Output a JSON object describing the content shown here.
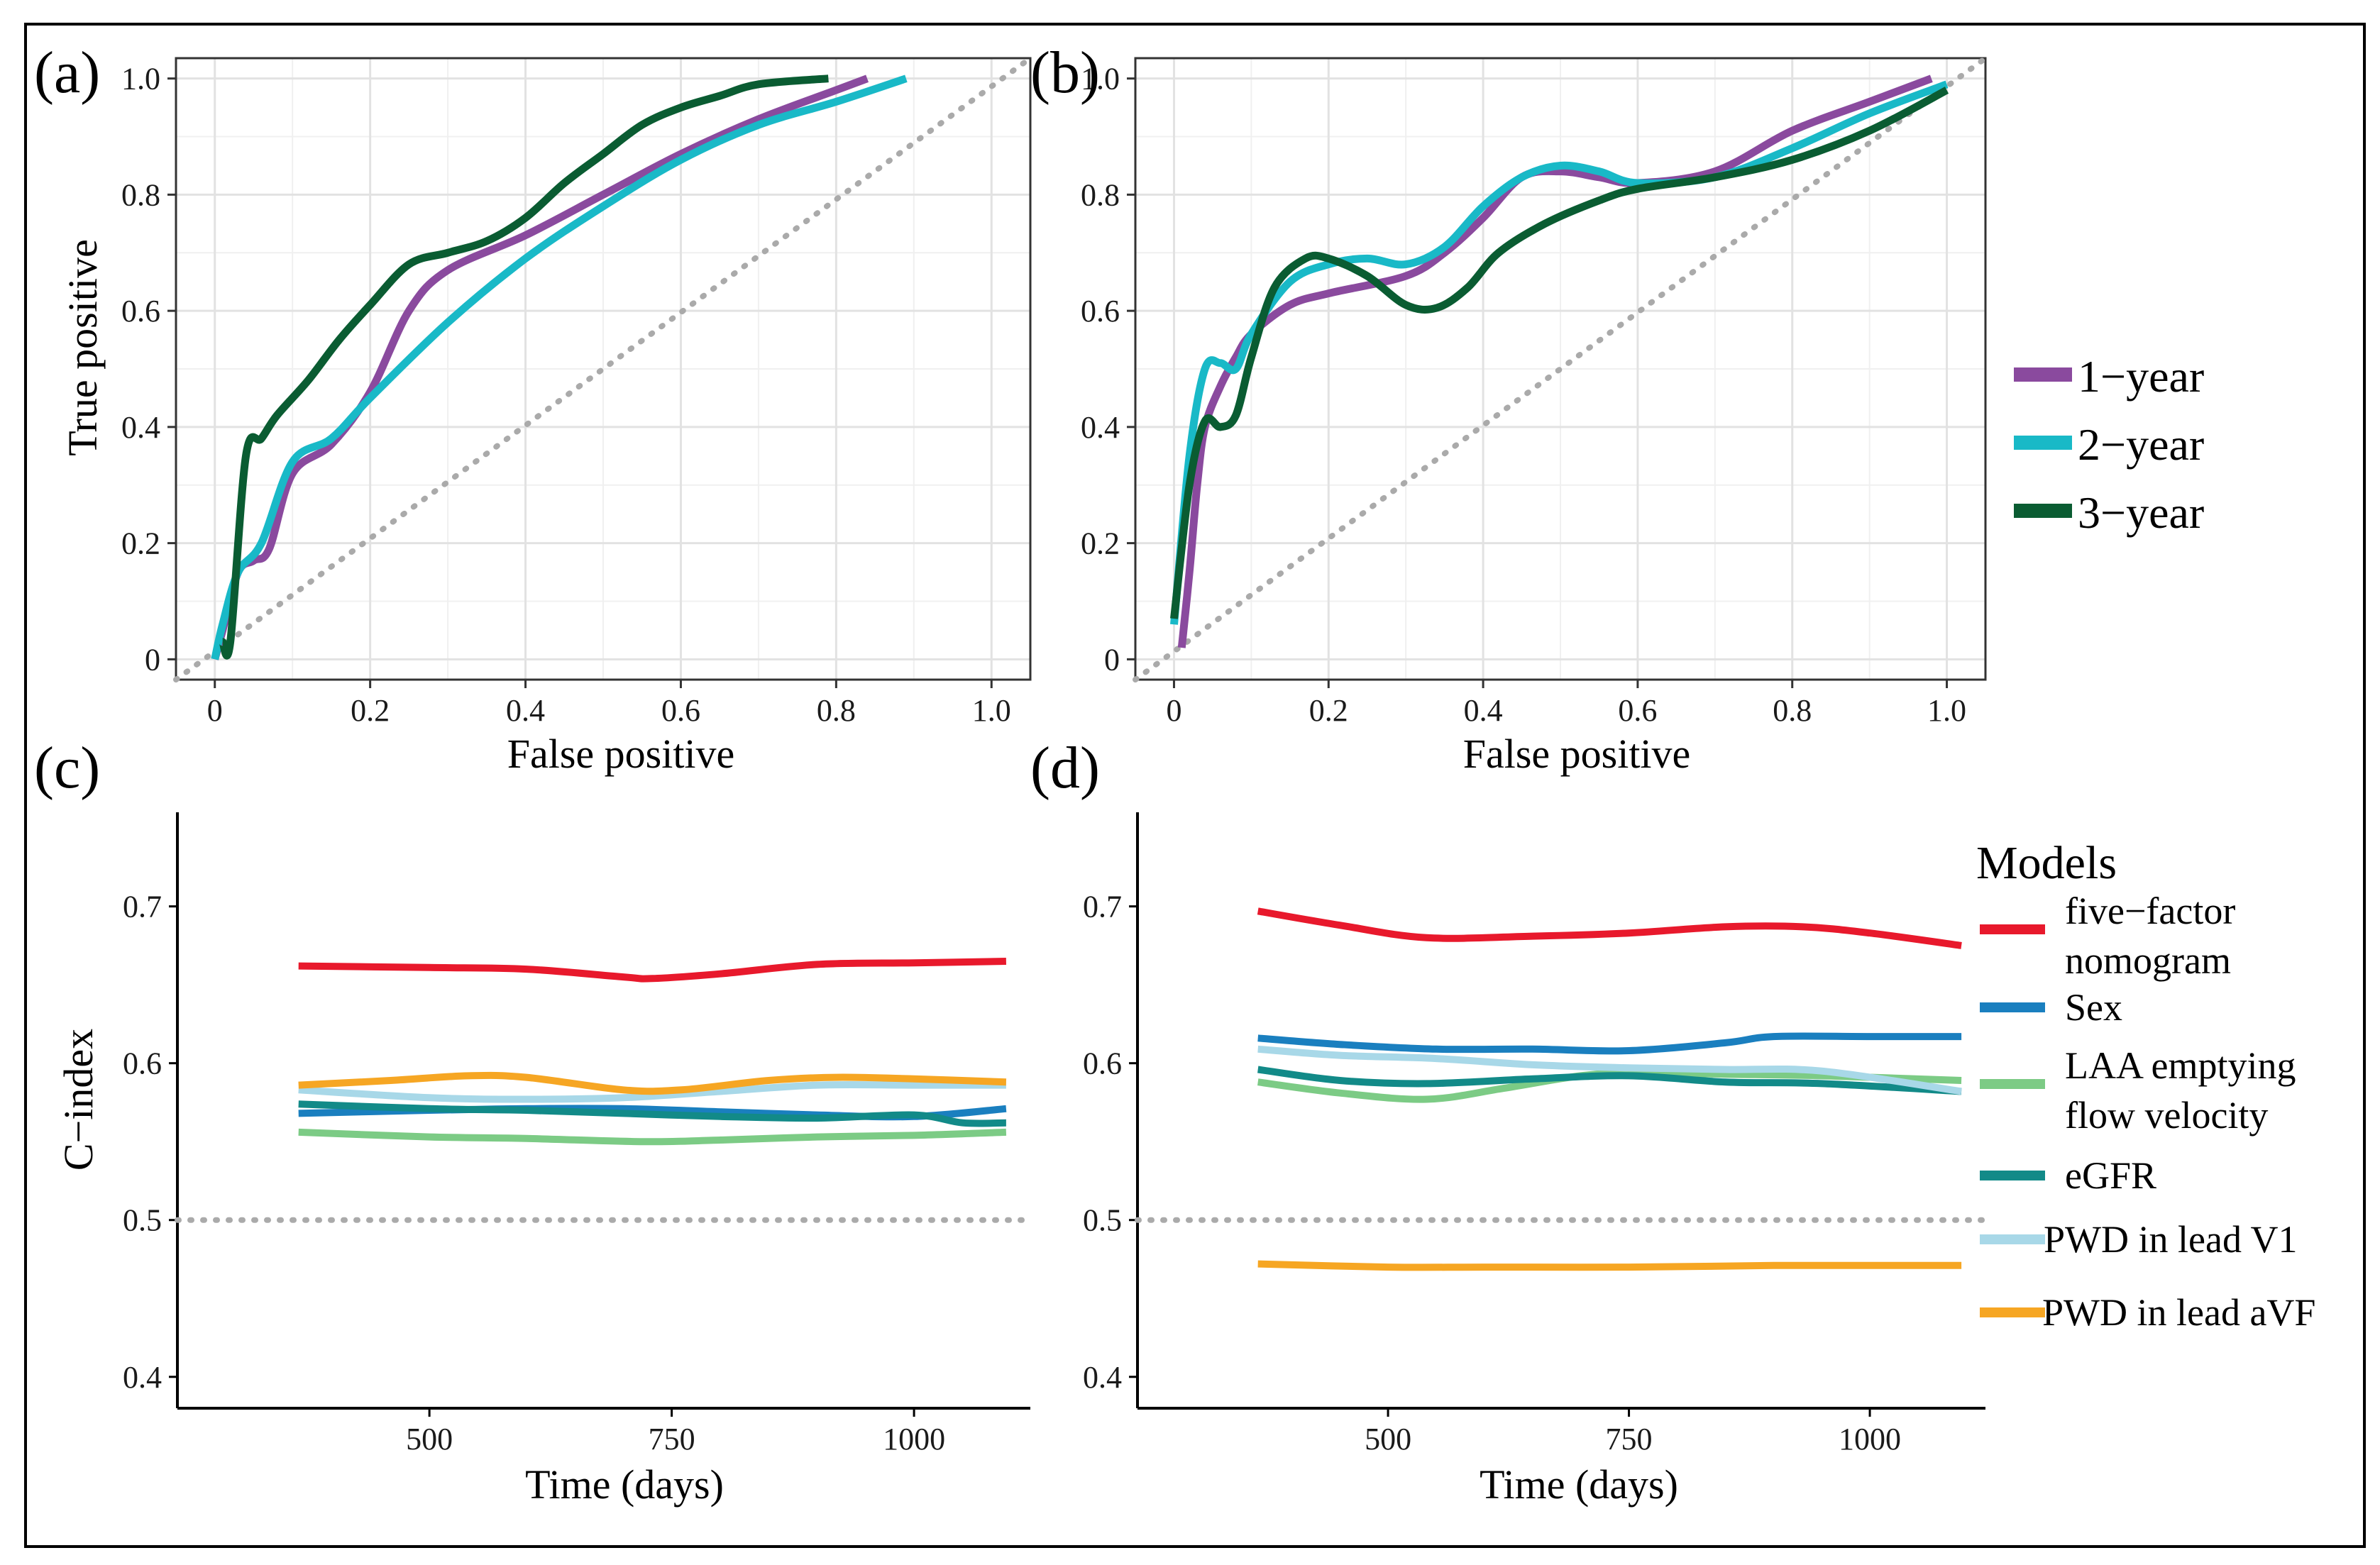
{
  "chart_data": [
    {
      "panel": "(a)",
      "type": "line",
      "xlabel": "False positive",
      "ylabel": "True positive",
      "xlim": [
        0,
        1
      ],
      "ylim": [
        0,
        1
      ],
      "xticks": [
        "0",
        "0.2",
        "0.4",
        "0.6",
        "0.8",
        "1.0"
      ],
      "yticks": [
        "0",
        "0.2",
        "0.4",
        "0.6",
        "0.8",
        "1.0"
      ],
      "reference": "diagonal",
      "series": [
        {
          "name": "1−year",
          "color": "#8a4a9e",
          "points": [
            [
              0,
              0
            ],
            [
              0.01,
              0.05
            ],
            [
              0.03,
              0.15
            ],
            [
              0.05,
              0.17
            ],
            [
              0.07,
              0.19
            ],
            [
              0.1,
              0.32
            ],
            [
              0.15,
              0.37
            ],
            [
              0.2,
              0.46
            ],
            [
              0.25,
              0.6
            ],
            [
              0.3,
              0.67
            ],
            [
              0.4,
              0.73
            ],
            [
              0.5,
              0.8
            ],
            [
              0.6,
              0.87
            ],
            [
              0.7,
              0.93
            ],
            [
              0.8,
              0.98
            ],
            [
              0.84,
              1.0
            ]
          ]
        },
        {
          "name": "2−year",
          "color": "#19b9c7",
          "points": [
            [
              0,
              0
            ],
            [
              0.01,
              0.06
            ],
            [
              0.03,
              0.15
            ],
            [
              0.06,
              0.2
            ],
            [
              0.1,
              0.34
            ],
            [
              0.15,
              0.38
            ],
            [
              0.2,
              0.45
            ],
            [
              0.3,
              0.58
            ],
            [
              0.4,
              0.69
            ],
            [
              0.5,
              0.78
            ],
            [
              0.6,
              0.86
            ],
            [
              0.7,
              0.92
            ],
            [
              0.8,
              0.96
            ],
            [
              0.89,
              1.0
            ]
          ]
        },
        {
          "name": "3−year",
          "color": "#0a5c32",
          "points": [
            [
              0.01,
              0.03
            ],
            [
              0.02,
              0.03
            ],
            [
              0.04,
              0.35
            ],
            [
              0.06,
              0.38
            ],
            [
              0.08,
              0.42
            ],
            [
              0.12,
              0.48
            ],
            [
              0.16,
              0.55
            ],
            [
              0.2,
              0.61
            ],
            [
              0.25,
              0.68
            ],
            [
              0.3,
              0.7
            ],
            [
              0.35,
              0.72
            ],
            [
              0.4,
              0.76
            ],
            [
              0.45,
              0.82
            ],
            [
              0.5,
              0.87
            ],
            [
              0.55,
              0.92
            ],
            [
              0.6,
              0.95
            ],
            [
              0.65,
              0.97
            ],
            [
              0.7,
              0.99
            ],
            [
              0.79,
              1.0
            ]
          ]
        }
      ]
    },
    {
      "panel": "(b)",
      "type": "line",
      "xlabel": "False positive",
      "ylabel": "",
      "xlim": [
        0,
        1
      ],
      "ylim": [
        0,
        1
      ],
      "xticks": [
        "0",
        "0.2",
        "0.4",
        "0.6",
        "0.8",
        "1.0"
      ],
      "yticks": [
        "0",
        "0.2",
        "0.4",
        "0.6",
        "0.8",
        "1.0"
      ],
      "reference": "diagonal",
      "series": [
        {
          "name": "1−year",
          "color": "#8a4a9e",
          "points": [
            [
              0.01,
              0.02
            ],
            [
              0.02,
              0.15
            ],
            [
              0.03,
              0.3
            ],
            [
              0.04,
              0.4
            ],
            [
              0.06,
              0.47
            ],
            [
              0.08,
              0.52
            ],
            [
              0.1,
              0.56
            ],
            [
              0.15,
              0.61
            ],
            [
              0.2,
              0.63
            ],
            [
              0.3,
              0.66
            ],
            [
              0.35,
              0.7
            ],
            [
              0.4,
              0.76
            ],
            [
              0.45,
              0.83
            ],
            [
              0.5,
              0.84
            ],
            [
              0.55,
              0.83
            ],
            [
              0.6,
              0.82
            ],
            [
              0.7,
              0.84
            ],
            [
              0.8,
              0.91
            ],
            [
              0.9,
              0.96
            ],
            [
              0.98,
              1.0
            ]
          ]
        },
        {
          "name": "2−year",
          "color": "#19b9c7",
          "points": [
            [
              0,
              0.06
            ],
            [
              0.02,
              0.35
            ],
            [
              0.04,
              0.5
            ],
            [
              0.06,
              0.51
            ],
            [
              0.08,
              0.5
            ],
            [
              0.1,
              0.56
            ],
            [
              0.15,
              0.65
            ],
            [
              0.2,
              0.68
            ],
            [
              0.25,
              0.69
            ],
            [
              0.3,
              0.68
            ],
            [
              0.35,
              0.71
            ],
            [
              0.4,
              0.78
            ],
            [
              0.45,
              0.83
            ],
            [
              0.5,
              0.85
            ],
            [
              0.55,
              0.84
            ],
            [
              0.6,
              0.82
            ],
            [
              0.7,
              0.83
            ],
            [
              0.8,
              0.88
            ],
            [
              0.9,
              0.94
            ],
            [
              1.0,
              0.99
            ]
          ]
        },
        {
          "name": "3−year",
          "color": "#0a5c32",
          "points": [
            [
              0,
              0.07
            ],
            [
              0.02,
              0.3
            ],
            [
              0.04,
              0.41
            ],
            [
              0.06,
              0.4
            ],
            [
              0.08,
              0.42
            ],
            [
              0.1,
              0.52
            ],
            [
              0.13,
              0.64
            ],
            [
              0.17,
              0.69
            ],
            [
              0.2,
              0.69
            ],
            [
              0.25,
              0.66
            ],
            [
              0.3,
              0.61
            ],
            [
              0.34,
              0.605
            ],
            [
              0.38,
              0.64
            ],
            [
              0.42,
              0.7
            ],
            [
              0.48,
              0.75
            ],
            [
              0.55,
              0.79
            ],
            [
              0.6,
              0.81
            ],
            [
              0.7,
              0.83
            ],
            [
              0.8,
              0.86
            ],
            [
              0.9,
              0.91
            ],
            [
              1.0,
              0.98
            ]
          ]
        }
      ]
    },
    {
      "panel": "(c)",
      "type": "line",
      "xlabel": "Time (days)",
      "ylabel": "C−index",
      "xlim": [
        240,
        1120
      ],
      "ylim": [
        0.38,
        0.76
      ],
      "xticks": [
        500,
        750,
        1000
      ],
      "yticks": [
        "0.4",
        "0.5",
        "0.6",
        "0.7"
      ],
      "reference_y": 0.5,
      "series": [
        {
          "name": "five−factor nomogram",
          "color": "#e8192c",
          "points": [
            [
              365,
              0.662
            ],
            [
              500,
              0.661
            ],
            [
              600,
              0.66
            ],
            [
              700,
              0.655
            ],
            [
              730,
              0.654
            ],
            [
              800,
              0.657
            ],
            [
              900,
              0.663
            ],
            [
              1000,
              0.664
            ],
            [
              1095,
              0.665
            ]
          ]
        },
        {
          "name": "Sex",
          "color": "#1a7fbf",
          "points": [
            [
              365,
              0.568
            ],
            [
              500,
              0.57
            ],
            [
              600,
              0.571
            ],
            [
              700,
              0.571
            ],
            [
              800,
              0.569
            ],
            [
              900,
              0.567
            ],
            [
              1000,
              0.566
            ],
            [
              1095,
              0.571
            ]
          ]
        },
        {
          "name": "LAA emptying flow velocity",
          "color": "#7ccb85",
          "points": [
            [
              365,
              0.556
            ],
            [
              500,
              0.553
            ],
            [
              600,
              0.552
            ],
            [
              720,
              0.55
            ],
            [
              800,
              0.551
            ],
            [
              900,
              0.553
            ],
            [
              1000,
              0.554
            ],
            [
              1095,
              0.556
            ]
          ]
        },
        {
          "name": "eGFR",
          "color": "#128a88",
          "points": [
            [
              365,
              0.574
            ],
            [
              500,
              0.571
            ],
            [
              600,
              0.57
            ],
            [
              700,
              0.568
            ],
            [
              800,
              0.566
            ],
            [
              900,
              0.565
            ],
            [
              1000,
              0.567
            ],
            [
              1050,
              0.562
            ],
            [
              1095,
              0.562
            ]
          ]
        },
        {
          "name": "PWD in lead V1",
          "color": "#a8d8e8",
          "points": [
            [
              365,
              0.583
            ],
            [
              500,
              0.578
            ],
            [
              600,
              0.577
            ],
            [
              700,
              0.578
            ],
            [
              800,
              0.582
            ],
            [
              900,
              0.586
            ],
            [
              1000,
              0.586
            ],
            [
              1095,
              0.586
            ]
          ]
        },
        {
          "name": "PWD in lead aVF",
          "color": "#f6a623",
          "points": [
            [
              365,
              0.586
            ],
            [
              460,
              0.589
            ],
            [
              540,
              0.592
            ],
            [
              600,
              0.591
            ],
            [
              700,
              0.583
            ],
            [
              760,
              0.583
            ],
            [
              850,
              0.589
            ],
            [
              920,
              0.591
            ],
            [
              1000,
              0.59
            ],
            [
              1095,
              0.588
            ]
          ]
        }
      ]
    },
    {
      "panel": "(d)",
      "type": "line",
      "xlabel": "Time (days)",
      "ylabel": "",
      "xlim": [
        240,
        1120
      ],
      "ylim": [
        0.38,
        0.76
      ],
      "xticks": [
        500,
        750,
        1000
      ],
      "yticks": [
        "0.4",
        "0.5",
        "0.6",
        "0.7"
      ],
      "reference_y": 0.5,
      "series": [
        {
          "name": "five−factor nomogram",
          "color": "#e8192c",
          "points": [
            [
              365,
              0.697
            ],
            [
              450,
              0.688
            ],
            [
              540,
              0.68
            ],
            [
              650,
              0.681
            ],
            [
              750,
              0.683
            ],
            [
              850,
              0.687
            ],
            [
              930,
              0.687
            ],
            [
              1000,
              0.683
            ],
            [
              1095,
              0.675
            ]
          ]
        },
        {
          "name": "Sex",
          "color": "#1a7fbf",
          "points": [
            [
              365,
              0.616
            ],
            [
              450,
              0.612
            ],
            [
              550,
              0.609
            ],
            [
              650,
              0.609
            ],
            [
              750,
              0.608
            ],
            [
              850,
              0.613
            ],
            [
              900,
              0.617
            ],
            [
              1000,
              0.617
            ],
            [
              1095,
              0.617
            ]
          ]
        },
        {
          "name": "LAA emptying flow velocity",
          "color": "#7ccb85",
          "points": [
            [
              365,
              0.588
            ],
            [
              450,
              0.581
            ],
            [
              540,
              0.577
            ],
            [
              620,
              0.584
            ],
            [
              700,
              0.592
            ],
            [
              760,
              0.594
            ],
            [
              850,
              0.593
            ],
            [
              950,
              0.592
            ],
            [
              1095,
              0.589
            ]
          ]
        },
        {
          "name": "eGFR",
          "color": "#128a88",
          "points": [
            [
              365,
              0.596
            ],
            [
              450,
              0.589
            ],
            [
              540,
              0.587
            ],
            [
              650,
              0.59
            ],
            [
              750,
              0.592
            ],
            [
              850,
              0.588
            ],
            [
              950,
              0.587
            ],
            [
              1095,
              0.582
            ]
          ]
        },
        {
          "name": "PWD in lead V1",
          "color": "#a8d8e8",
          "points": [
            [
              365,
              0.609
            ],
            [
              450,
              0.605
            ],
            [
              550,
              0.603
            ],
            [
              650,
              0.599
            ],
            [
              750,
              0.597
            ],
            [
              850,
              0.596
            ],
            [
              950,
              0.595
            ],
            [
              1095,
              0.582
            ]
          ]
        },
        {
          "name": "PWD in lead aVF",
          "color": "#f6a623",
          "points": [
            [
              365,
              0.472
            ],
            [
              500,
              0.47
            ],
            [
              600,
              0.47
            ],
            [
              750,
              0.47
            ],
            [
              900,
              0.471
            ],
            [
              1000,
              0.471
            ],
            [
              1095,
              0.471
            ]
          ]
        }
      ]
    }
  ],
  "legends": {
    "roc": {
      "items": [
        {
          "label": "1−year",
          "color": "#8a4a9e"
        },
        {
          "label": "2−year",
          "color": "#19b9c7"
        },
        {
          "label": "3−year",
          "color": "#0a5c32"
        }
      ]
    },
    "models": {
      "title": "Models",
      "items": [
        {
          "lines": [
            "five−factor",
            "nomogram"
          ],
          "color": "#e8192c"
        },
        {
          "lines": [
            "Sex"
          ],
          "color": "#1a7fbf"
        },
        {
          "lines": [
            "LAA emptying",
            "flow velocity"
          ],
          "color": "#7ccb85"
        },
        {
          "lines": [
            "eGFR"
          ],
          "color": "#128a88"
        },
        {
          "lines": [
            "PWD in lead V1"
          ],
          "color": "#a8d8e8"
        },
        {
          "lines": [
            "PWD in lead aVF"
          ],
          "color": "#f6a623"
        }
      ]
    }
  }
}
